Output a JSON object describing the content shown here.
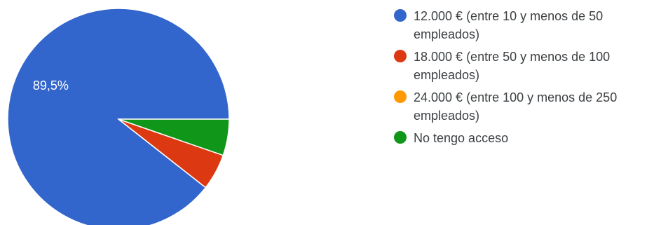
{
  "chart_data": {
    "type": "pie",
    "categories": [
      "12.000 € (entre 10 y menos de 50 empleados)",
      "18.000 € (entre 50 y menos de 100 empleados)",
      "24.000 € (entre 100 y menos de 250 empleados)",
      "No tengo acceso"
    ],
    "values": [
      89.5,
      5.3,
      0,
      5.3
    ],
    "data_labels": [
      "89,5%",
      "",
      "",
      ""
    ],
    "colors": [
      "#3366cc",
      "#dc3912",
      "#ff9900",
      "#109618"
    ],
    "legend_position": "right"
  }
}
